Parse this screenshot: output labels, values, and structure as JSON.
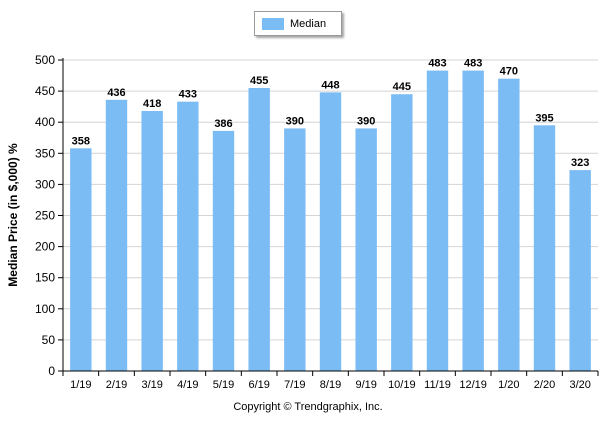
{
  "chart_data": {
    "type": "bar",
    "categories": [
      "1/19",
      "2/19",
      "3/19",
      "4/19",
      "5/19",
      "6/19",
      "7/19",
      "8/19",
      "9/19",
      "10/19",
      "11/19",
      "12/19",
      "1/20",
      "2/20",
      "3/20"
    ],
    "series": [
      {
        "name": "Median",
        "values": [
          358,
          436,
          418,
          433,
          386,
          455,
          390,
          448,
          390,
          445,
          483,
          483,
          470,
          395,
          323
        ],
        "color": "#7cbcf5"
      }
    ],
    "title": "",
    "xlabel": "",
    "ylabel": "Median Price (in $,000) %",
    "ylim": [
      0,
      500
    ],
    "yticks": [
      0,
      50,
      100,
      150,
      200,
      250,
      300,
      350,
      400,
      450,
      500
    ],
    "grid": true,
    "legend": "top-center",
    "data_labels": true
  },
  "footer": {
    "copyright": "Copyright © Trendgraphix, Inc."
  },
  "colors": {
    "bar": "#7cbcf5",
    "grid": "#d4d4d4",
    "axis": "#000000"
  }
}
